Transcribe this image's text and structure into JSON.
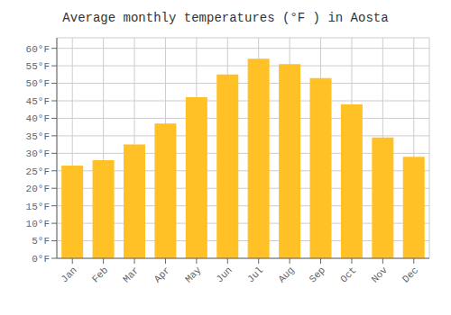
{
  "chart_data": {
    "type": "bar",
    "title": "Average monthly temperatures (°F ) in Aosta",
    "categories": [
      "Jan",
      "Feb",
      "Mar",
      "Apr",
      "May",
      "Jun",
      "Jul",
      "Aug",
      "Sep",
      "Oct",
      "Nov",
      "Dec"
    ],
    "values": [
      26.5,
      28.0,
      32.5,
      38.5,
      46.0,
      52.5,
      57.0,
      55.5,
      51.5,
      44.0,
      34.5,
      29.0
    ],
    "color": "#FFC125",
    "ylim": [
      0,
      63
    ],
    "yticks": [
      {
        "value": 0,
        "label": "0°F"
      },
      {
        "value": 5,
        "label": "5°F"
      },
      {
        "value": 10,
        "label": "10°F"
      },
      {
        "value": 15,
        "label": "15°F"
      },
      {
        "value": 20,
        "label": "20°F"
      },
      {
        "value": 25,
        "label": "25°F"
      },
      {
        "value": 30,
        "label": "30°F"
      },
      {
        "value": 35,
        "label": "35°F"
      },
      {
        "value": 40,
        "label": "40°F"
      },
      {
        "value": 45,
        "label": "45°F"
      },
      {
        "value": 50,
        "label": "50°F"
      },
      {
        "value": 55,
        "label": "55°F"
      },
      {
        "value": 60,
        "label": "60°F"
      }
    ],
    "grid": true
  }
}
